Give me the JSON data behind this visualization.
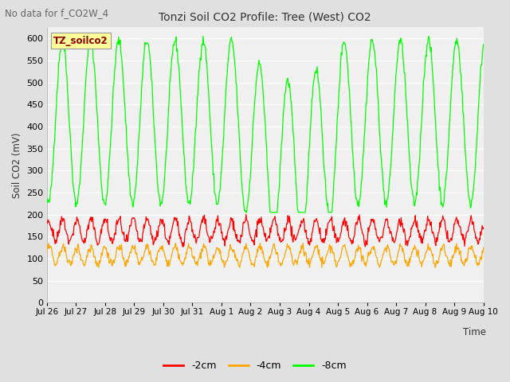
{
  "title": "Tonzi Soil CO2 Profile: Tree (West) CO2",
  "no_data_text": "No data for f_CO2W_4",
  "ylabel": "Soil CO2 (mV)",
  "xlabel": "Time",
  "legend_box_text": "TZ_soilco2",
  "legend_box_color": "#ffff99",
  "legend_box_text_color": "#8b0000",
  "ylim": [
    0,
    625
  ],
  "yticks": [
    0,
    50,
    100,
    150,
    200,
    250,
    300,
    350,
    400,
    450,
    500,
    550,
    600
  ],
  "fig_bg_color": "#e0e0e0",
  "plot_bg_color": "#f0f0f0",
  "series": [
    {
      "label": "-2cm",
      "color": "#ff0000"
    },
    {
      "label": "-4cm",
      "color": "#ffa500"
    },
    {
      "label": "-8cm",
      "color": "#00ff00"
    }
  ],
  "x_tick_labels": [
    "Jul 26",
    "Jul 27",
    "Jul 28",
    "Jul 29",
    "Jul 30",
    "Jul 31",
    "Aug 1",
    "Aug 2",
    "Aug 3",
    "Aug 4",
    "Aug 5",
    "Aug 6",
    "Aug 7",
    "Aug 8",
    "Aug 9",
    "Aug 10"
  ],
  "num_days": 15.5,
  "seed": 42
}
